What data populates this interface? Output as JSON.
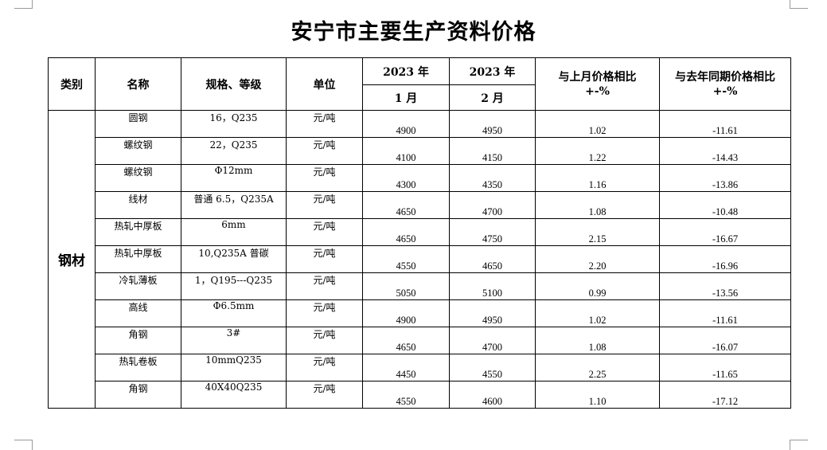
{
  "title": "安宁市主要生产资料价格",
  "headers": {
    "category": "类别",
    "name": "名称",
    "spec": "规格、等级",
    "unit": "单位",
    "year1": "2023 年",
    "month1": "1 月",
    "year2": "2023 年",
    "month2": "2 月",
    "mom_line1": "与上月价格相比",
    "mom_line2": "+-%",
    "yoy_line1": "与去年同期价格相比",
    "yoy_line2": "+-%"
  },
  "category": "钢材",
  "rows": [
    {
      "name": "圆钢",
      "spec": "16，Q235",
      "unit": "元/吨",
      "jan": "4900",
      "feb": "4950",
      "mom": "1.02",
      "yoy": "-11.61"
    },
    {
      "name": "螺纹钢",
      "spec": "22，Q235",
      "unit": "元/吨",
      "jan": "4100",
      "feb": "4150",
      "mom": "1.22",
      "yoy": "-14.43"
    },
    {
      "name": "螺纹钢",
      "spec": "Φ12mm",
      "unit": "元/吨",
      "jan": "4300",
      "feb": "4350",
      "mom": "1.16",
      "yoy": "-13.86"
    },
    {
      "name": "线材",
      "spec": "普通 6.5，Q235A",
      "unit": "元/吨",
      "jan": "4650",
      "feb": "4700",
      "mom": "1.08",
      "yoy": "-10.48"
    },
    {
      "name": "热轧中厚板",
      "spec": "6mm",
      "unit": "元/吨",
      "jan": "4650",
      "feb": "4750",
      "mom": "2.15",
      "yoy": "-16.67"
    },
    {
      "name": "热轧中厚板",
      "spec": "10,Q235A 普碳",
      "unit": "元/吨",
      "jan": "4550",
      "feb": "4650",
      "mom": "2.20",
      "yoy": "-16.96"
    },
    {
      "name": "冷轧薄板",
      "spec": "1，Q195---Q235",
      "unit": "元/吨",
      "jan": "5050",
      "feb": "5100",
      "mom": "0.99",
      "yoy": "-13.56"
    },
    {
      "name": "高线",
      "spec": "Φ6.5mm",
      "unit": "元/吨",
      "jan": "4900",
      "feb": "4950",
      "mom": "1.02",
      "yoy": "-11.61"
    },
    {
      "name": "角钢",
      "spec": "3#",
      "unit": "元/吨",
      "jan": "4650",
      "feb": "4700",
      "mom": "1.08",
      "yoy": "-16.07"
    },
    {
      "name": "热轧卷板",
      "spec": "10mmQ235",
      "unit": "元/吨",
      "jan": "4450",
      "feb": "4550",
      "mom": "2.25",
      "yoy": "-11.65"
    },
    {
      "name": "角钢",
      "spec": "40X40Q235",
      "unit": "元/吨",
      "jan": "4550",
      "feb": "4600",
      "mom": "1.10",
      "yoy": "-17.12"
    }
  ]
}
